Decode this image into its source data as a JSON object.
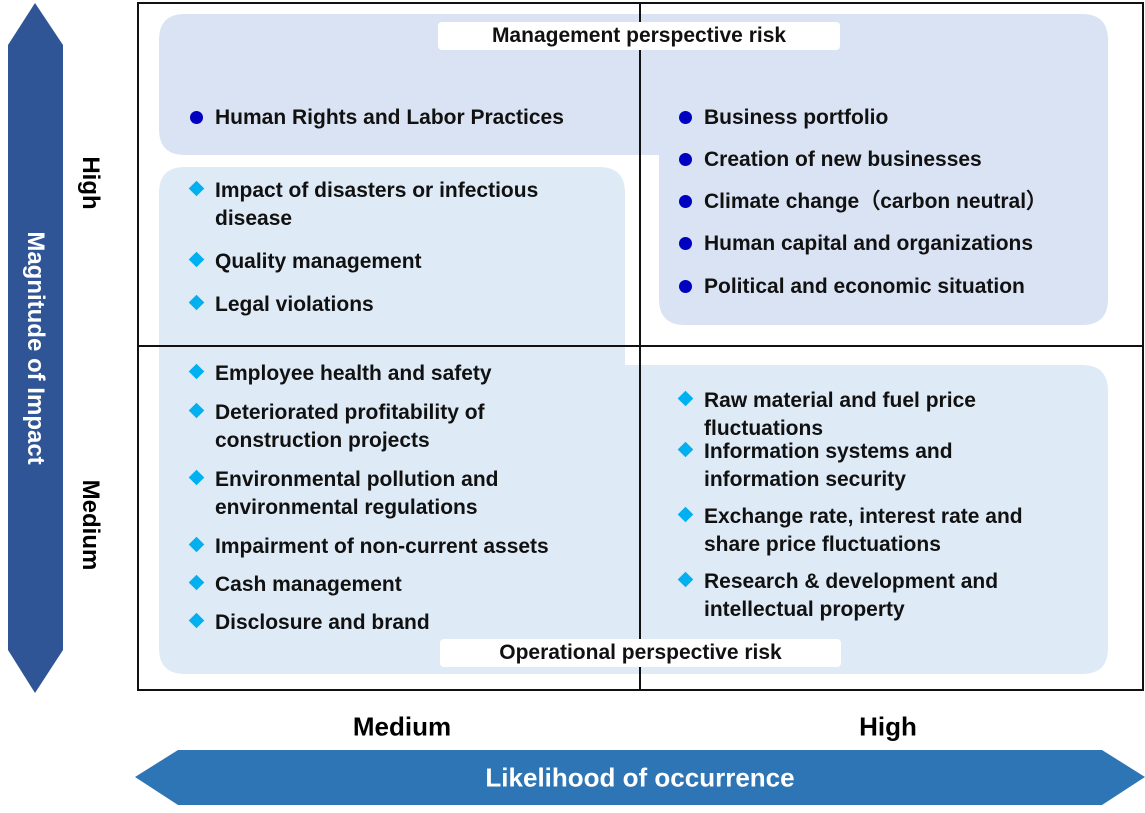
{
  "colors": {
    "management_bg": "#dae3f3",
    "operational_bg": "#deeaf6",
    "vertical_arrow": "#2f5597",
    "horizontal_arrow": "#2e75b6",
    "management_bullet": "#0000c0",
    "operational_bullet": "#00b0f0"
  },
  "axes": {
    "y_title": "Magnitude of Impact",
    "y_levels": [
      "High",
      "Medium"
    ],
    "x_title": "Likelihood of occurrence",
    "x_levels": [
      "Medium",
      "High"
    ]
  },
  "groups": {
    "management": "Management perspective risk",
    "operational": "Operational perspective risk"
  },
  "quadrants": {
    "high_medium": {
      "management": [
        "Human Rights and Labor Practices"
      ],
      "operational": [
        [
          "Impact of disasters or infectious",
          "disease"
        ],
        [
          "Quality management"
        ],
        [
          "Legal violations"
        ]
      ]
    },
    "high_high": {
      "management": [
        "Business portfolio",
        "Creation of new businesses",
        "Climate change（carbon neutral）",
        "Human capital and organizations",
        "Political and economic situation"
      ]
    },
    "medium_medium": {
      "operational": [
        [
          "Employee  health and safety"
        ],
        [
          "Deteriorated profitability of",
          "construction projects"
        ],
        [
          "Environmental pollution and",
          "environmental regulations"
        ],
        [
          "Impairment of non-current assets"
        ],
        [
          "Cash management"
        ],
        [
          "Disclosure and brand"
        ]
      ]
    },
    "medium_high": {
      "operational": [
        [
          "Raw material and fuel price",
          "fluctuations"
        ],
        [
          "Information systems  and",
          "information security"
        ],
        [
          "Exchange rate, interest rate and",
          "share price fluctuations"
        ],
        [
          "Research & development and",
          "intellectual property"
        ]
      ]
    }
  }
}
